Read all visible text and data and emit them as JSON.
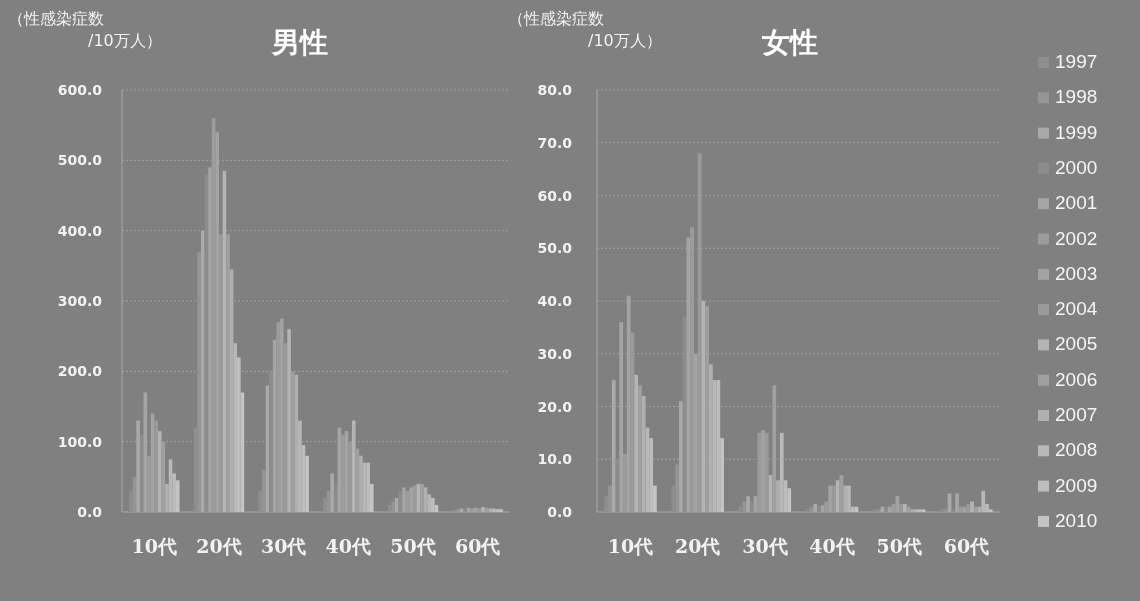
{
  "chart_data": [
    {
      "type": "bar",
      "title": "男性",
      "ylabel": "（性感染症数\n/10万人）",
      "categories": [
        "10代",
        "20代",
        "30代",
        "40代",
        "50代",
        "60代"
      ],
      "ylim": [
        0,
        600
      ],
      "yticks": [
        {
          "value": 0,
          "label": "0.0"
        },
        {
          "value": 100,
          "label": "100.0"
        },
        {
          "value": 200,
          "label": "200.0"
        },
        {
          "value": 300,
          "label": "300.0"
        },
        {
          "value": 400,
          "label": "400.0"
        },
        {
          "value": 500,
          "label": "500.0"
        },
        {
          "value": 600,
          "label": "600.0"
        }
      ],
      "grid": "y",
      "legend": false,
      "series": [
        {
          "color": "#8e8e8e",
          "values": [
            30,
            120,
            30,
            20,
            10,
            3
          ]
        },
        {
          "color": "#959595",
          "values": [
            50,
            370,
            60,
            30,
            15,
            4
          ]
        },
        {
          "color": "#a9a9a9",
          "values": [
            130,
            400,
            180,
            55,
            20,
            5
          ]
        },
        {
          "color": "#8c8c8c",
          "values": [
            110,
            480,
            200,
            40,
            30,
            5
          ]
        },
        {
          "color": "#a5a5a5",
          "values": [
            170,
            490,
            245,
            120,
            35,
            6
          ]
        },
        {
          "color": "#9c9c9c",
          "values": [
            80,
            560,
            270,
            110,
            30,
            5
          ]
        },
        {
          "color": "#a3a3a3",
          "values": [
            140,
            540,
            275,
            115,
            35,
            6
          ]
        },
        {
          "color": "#9a9a9a",
          "values": [
            130,
            395,
            240,
            100,
            38,
            5
          ]
        },
        {
          "color": "#b4b4b4",
          "values": [
            115,
            485,
            260,
            130,
            40,
            7
          ]
        },
        {
          "color": "#a0a0a0",
          "values": [
            100,
            395,
            200,
            90,
            40,
            6
          ]
        },
        {
          "color": "#b0b0b0",
          "values": [
            40,
            345,
            195,
            80,
            35,
            5
          ]
        },
        {
          "color": "#b8b8b8",
          "values": [
            75,
            240,
            130,
            70,
            25,
            5
          ]
        },
        {
          "color": "#bdbdbd",
          "values": [
            55,
            220,
            95,
            70,
            20,
            4
          ]
        },
        {
          "color": "#c4c4c4",
          "values": [
            45,
            170,
            80,
            40,
            10,
            4
          ]
        }
      ]
    },
    {
      "type": "bar",
      "title": "女性",
      "ylabel": "（性感染症数\n/10万人）",
      "categories": [
        "10代",
        "20代",
        "30代",
        "40代",
        "50代",
        "60代"
      ],
      "ylim": [
        0,
        80
      ],
      "yticks": [
        {
          "value": 0,
          "label": "0.0"
        },
        {
          "value": 10,
          "label": "10.0"
        },
        {
          "value": 20,
          "label": "20.0"
        },
        {
          "value": 30,
          "label": "30.0"
        },
        {
          "value": 40,
          "label": "40.0"
        },
        {
          "value": 50,
          "label": "50.0"
        },
        {
          "value": 60,
          "label": "60.0"
        },
        {
          "value": 70,
          "label": "70.0"
        },
        {
          "value": 80,
          "label": "80.0"
        }
      ],
      "grid": "y",
      "legend": "right",
      "series": [
        {
          "name": "1997",
          "color": "#8e8e8e",
          "values": [
            3,
            5,
            1,
            0.5,
            0.5,
            0.5
          ]
        },
        {
          "name": "1998",
          "color": "#959595",
          "values": [
            5,
            9,
            2,
            1,
            0.5,
            0.5
          ]
        },
        {
          "name": "1999",
          "color": "#a9a9a9",
          "values": [
            25,
            21,
            3,
            1.5,
            1,
            3.5
          ]
        },
        {
          "name": "2000",
          "color": "#8c8c8c",
          "values": [
            10,
            37,
            2,
            1,
            1,
            0.5
          ]
        },
        {
          "name": "2001",
          "color": "#a5a5a5",
          "values": [
            36,
            52,
            3,
            1.3,
            1,
            3.5
          ]
        },
        {
          "name": "2002",
          "color": "#9c9c9c",
          "values": [
            11,
            54,
            15,
            2,
            1.5,
            1
          ]
        },
        {
          "name": "2003",
          "color": "#a3a3a3",
          "values": [
            41,
            30,
            15.5,
            5,
            3,
            1
          ]
        },
        {
          "name": "2004",
          "color": "#9a9a9a",
          "values": [
            34,
            68,
            15,
            5,
            1.5,
            1.5
          ]
        },
        {
          "name": "2005",
          "color": "#b4b4b4",
          "values": [
            26,
            40,
            7,
            6,
            1.5,
            2
          ]
        },
        {
          "name": "2006",
          "color": "#a0a0a0",
          "values": [
            24,
            39,
            24,
            7,
            1,
            1
          ]
        },
        {
          "name": "2007",
          "color": "#b0b0b0",
          "values": [
            22,
            28,
            6,
            5,
            0.5,
            1
          ]
        },
        {
          "name": "2008",
          "color": "#b8b8b8",
          "values": [
            16,
            25,
            15,
            5,
            0.5,
            4
          ]
        },
        {
          "name": "2009",
          "color": "#bdbdbd",
          "values": [
            14,
            25,
            6,
            1,
            0.5,
            1.5
          ]
        },
        {
          "name": "2010",
          "color": "#c4c4c4",
          "values": [
            5,
            14,
            4.5,
            1,
            0.5,
            0.5
          ]
        }
      ]
    }
  ]
}
